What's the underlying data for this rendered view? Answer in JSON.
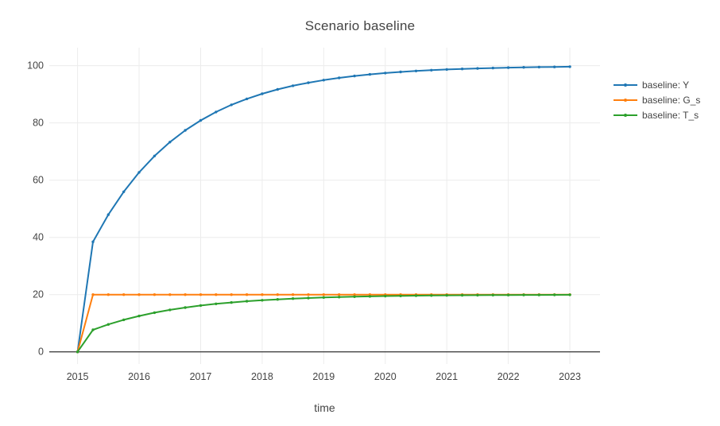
{
  "chart": {
    "title": "Scenario baseline",
    "xlabel": "time"
  },
  "chart_data": {
    "type": "line",
    "mode": "lines+markers",
    "title": "Scenario baseline",
    "xlabel": "time",
    "ylabel": "",
    "legend_position": "right",
    "grid": true,
    "xlim": [
      2014.54,
      2023.49
    ],
    "ylim": [
      -4.25,
      106.3
    ],
    "xticks": [
      2015,
      2016,
      2017,
      2018,
      2019,
      2020,
      2021,
      2022,
      2023
    ],
    "yticks": [
      0,
      20,
      40,
      60,
      80,
      100
    ],
    "x": [
      2015,
      2015.25,
      2015.5,
      2015.75,
      2016,
      2016.25,
      2016.5,
      2016.75,
      2017,
      2017.25,
      2017.5,
      2017.75,
      2018,
      2018.25,
      2018.5,
      2018.75,
      2019,
      2019.25,
      2019.5,
      2019.75,
      2020,
      2020.25,
      2020.5,
      2020.75,
      2021,
      2021.25,
      2021.5,
      2021.75,
      2022,
      2022.25,
      2022.5,
      2022.75,
      2023
    ],
    "series": [
      {
        "name": "baseline: Y",
        "color": "#1f77b4",
        "values": [
          0,
          38.46,
          47.93,
          55.94,
          62.72,
          68.45,
          73.31,
          77.41,
          80.89,
          83.83,
          86.32,
          88.42,
          90.2,
          91.71,
          92.99,
          94.06,
          94.98,
          95.75,
          96.4,
          96.96,
          97.43,
          97.82,
          98.16,
          98.44,
          98.68,
          98.88,
          99.06,
          99.2,
          99.32,
          99.43,
          99.52,
          99.59,
          99.65
        ]
      },
      {
        "name": "baseline: G_s",
        "color": "#ff7f0e",
        "values": [
          0,
          20,
          20,
          20,
          20,
          20,
          20,
          20,
          20,
          20,
          20,
          20,
          20,
          20,
          20,
          20,
          20,
          20,
          20,
          20,
          20,
          20,
          20,
          20,
          20,
          20,
          20,
          20,
          20,
          20,
          20,
          20,
          20
        ]
      },
      {
        "name": "baseline: T_s",
        "color": "#2ca02c",
        "values": [
          0,
          7.69,
          9.59,
          11.19,
          12.54,
          13.69,
          14.66,
          15.48,
          16.18,
          16.77,
          17.26,
          17.68,
          18.04,
          18.34,
          18.6,
          18.81,
          19,
          19.15,
          19.28,
          19.39,
          19.49,
          19.56,
          19.63,
          19.69,
          19.74,
          19.78,
          19.81,
          19.84,
          19.86,
          19.89,
          19.9,
          19.92,
          19.93
        ]
      }
    ],
    "colors": {
      "grid": "#ececec",
      "zeroline": "#444444",
      "text": "#444444",
      "background": "#ffffff"
    }
  }
}
